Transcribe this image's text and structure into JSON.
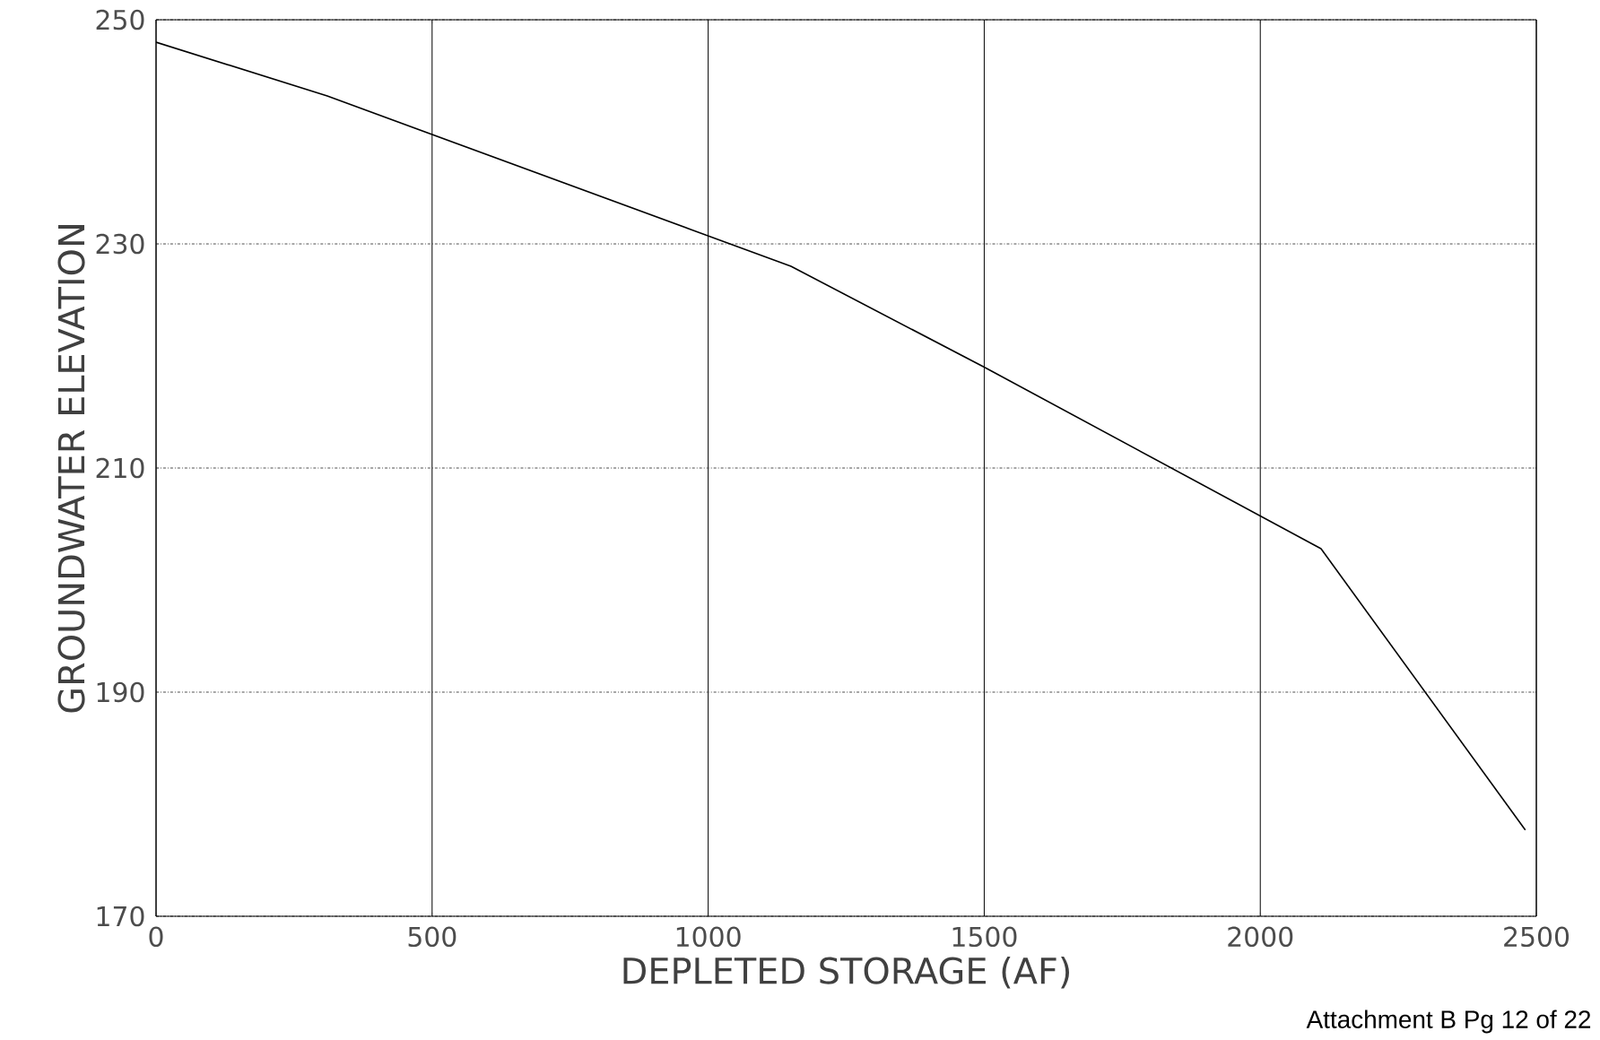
{
  "chart_data": {
    "type": "line",
    "xlabel": "DEPLETED STORAGE (AF)",
    "ylabel": "GROUNDWATER ELEVATION",
    "x": [
      0,
      310,
      1150,
      1500,
      2110,
      2480
    ],
    "series": [
      {
        "color": "#000000",
        "values": [
          248,
          243.2,
          228,
          219,
          202.8,
          177.7
        ]
      }
    ],
    "xlim": [
      0,
      2500
    ],
    "ylim": [
      170,
      250
    ],
    "xticks": [
      0,
      500,
      1000,
      1500,
      2000,
      2500
    ],
    "yticks": [
      170,
      190,
      210,
      230,
      250
    ],
    "grid": true,
    "marker": "none",
    "line_style": "solid",
    "annotations": [
      "Attachment B Pg 12 of 22"
    ]
  }
}
